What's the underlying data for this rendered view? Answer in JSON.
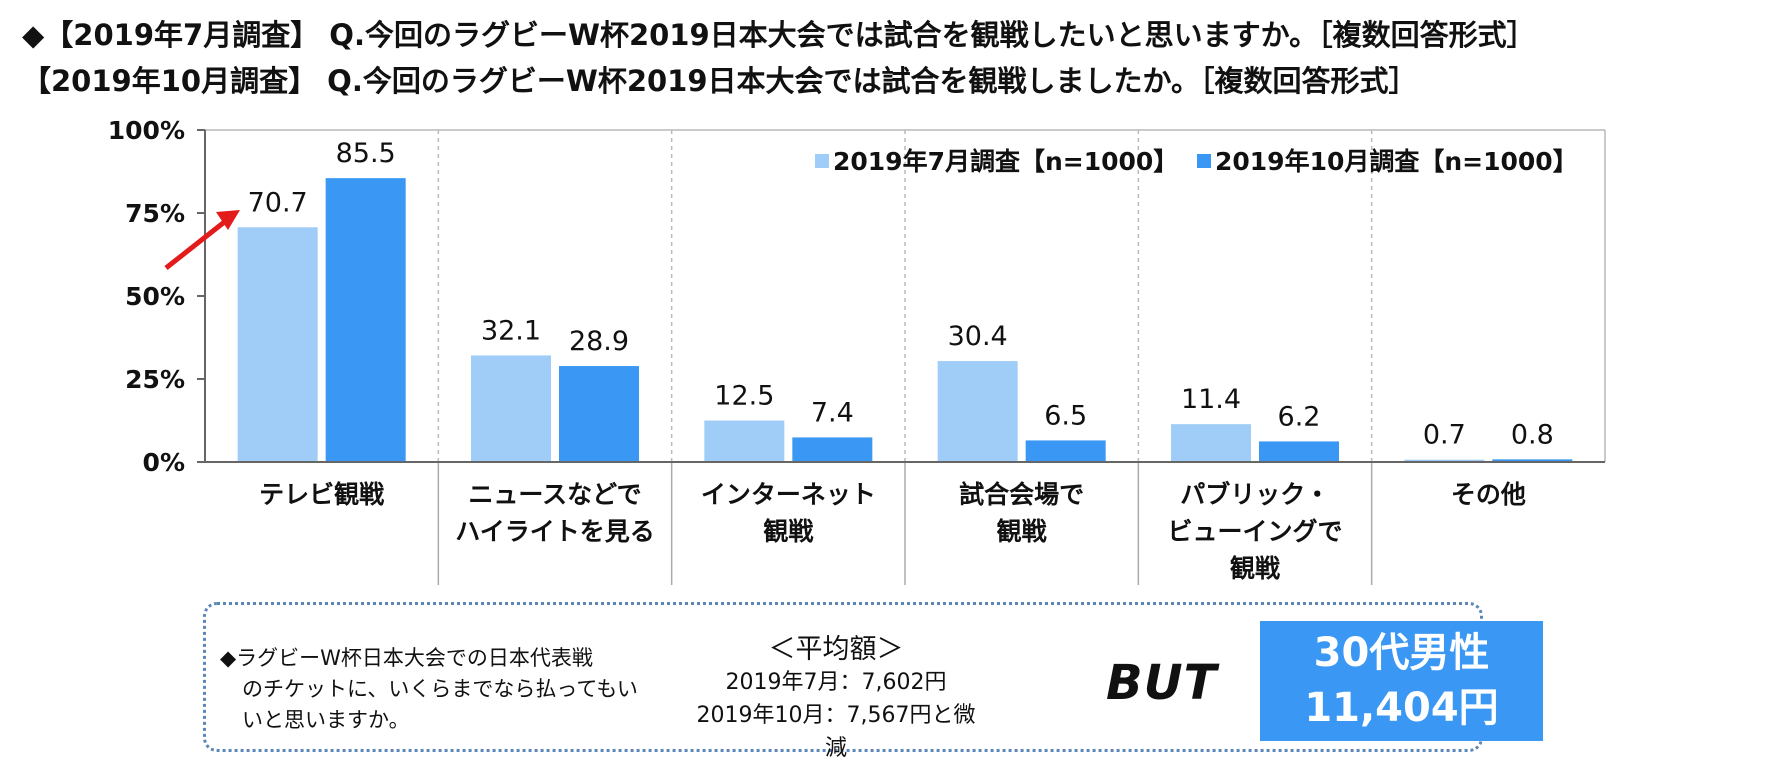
{
  "title": {
    "line1": "◆【2019年7月調査】 Q.今回のラグビーW杯2019日本大会では試合を観戦したいと思いますか。［複数回答形式］",
    "line2": "【2019年10月調査】 Q.今回のラグビーW杯2019日本大会では試合を観戦しましたか。［複数回答形式］"
  },
  "colors": {
    "series1": "#9fcdf7",
    "series2": "#3a97f3",
    "arrow": "#e31b1b",
    "grid": "#b9b9b9"
  },
  "chart_data": {
    "type": "bar",
    "categories": [
      [
        "テレビ観戦"
      ],
      [
        "ニュースなどで",
        "ハイライトを見る"
      ],
      [
        "インターネット",
        "観戦"
      ],
      [
        "試合会場で",
        "観戦"
      ],
      [
        "パブリック・",
        "ビューイングで",
        "観戦"
      ],
      [
        "その他"
      ]
    ],
    "series": [
      {
        "name": "2019年7月調査【n=1000】",
        "values": [
          70.7,
          32.1,
          12.5,
          30.4,
          11.4,
          0.7
        ],
        "labels": [
          "70.7",
          "32.1",
          "12.5",
          "30.4",
          "11.4",
          "0.7"
        ]
      },
      {
        "name": "2019年10月調査【n=1000】",
        "values": [
          85.5,
          28.9,
          7.4,
          6.5,
          6.2,
          0.8
        ],
        "labels": [
          "85.5",
          "28.9",
          "7.4",
          "6.5",
          "6.2",
          "0.8"
        ]
      }
    ],
    "yticks": [
      "0%",
      "25%",
      "50%",
      "75%",
      "100%"
    ],
    "ylim": [
      0,
      100
    ],
    "legend_position": "top-right",
    "annotation": "arrow pointing to 70.7"
  },
  "info": {
    "question_lines": [
      "◆ラグビーW杯日本大会での日本代表戦",
      "のチケットに、いくらまでなら払ってもい",
      "いと思いますか。"
    ],
    "avg_heading": "＜平均額＞",
    "avg_july": "2019年7月：7,602円",
    "avg_october": "2019年10月：7,567円と微減",
    "but": "BUT",
    "highlight_line1": "30代男性",
    "highlight_line2": "11,404円"
  }
}
